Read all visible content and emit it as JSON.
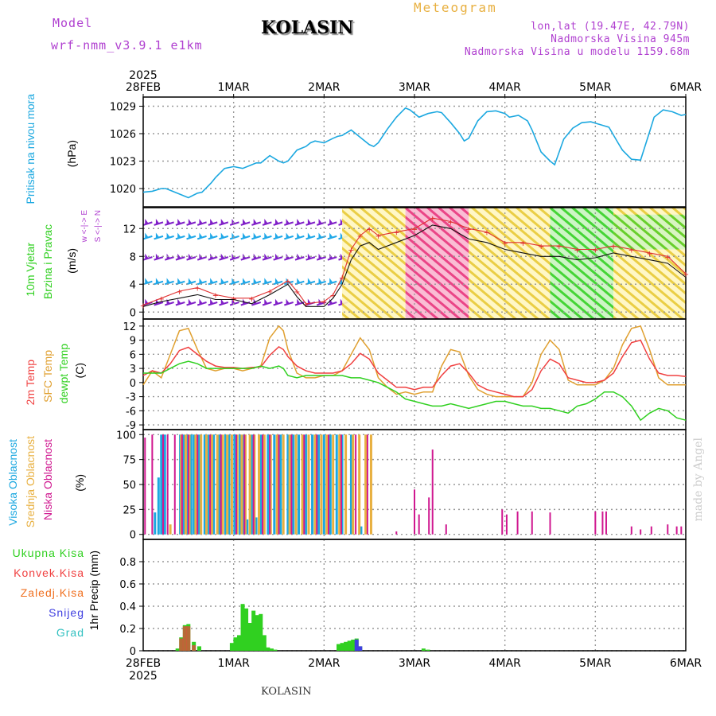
{
  "header": {
    "model_label": "Model",
    "model_run": "wrf-nmm_v3.9.1 e1km",
    "title": "KOLASIN",
    "meteogram": "Meteogram",
    "lonlat": "lon,lat (19.47E, 42.79N)",
    "altitude": "Nadmorska Visina 945m",
    "model_altitude": "Nadmorska Visina u modelu 1159.68m"
  },
  "footer": {
    "station": "KOLASIN",
    "credit": "made by Angel"
  },
  "time_axis": {
    "year": "2025",
    "labels": [
      "28FEB",
      "1MAR",
      "2MAR",
      "3MAR",
      "4MAR",
      "5MAR",
      "6MAR"
    ]
  },
  "colors": {
    "pressure": "#1ca8e0",
    "t2m": "#f04040",
    "sfc": "#e0a030",
    "dewpt": "#30d020",
    "high_cloud": "#1ca8e0",
    "mid_cloud": "#e8b040",
    "low_cloud": "#d01890",
    "total_precip": "#30d020",
    "conv_precip": "#f04040",
    "frz_precip": "#f07020",
    "snow": "#4040e0",
    "hail": "#30c0c0"
  },
  "panels": {
    "pressure": {
      "label": "Pritisak na nivou mora",
      "unit": "(hPa)"
    },
    "wind": {
      "label1": "10m Vjetar",
      "label2": "Brzina i Pravac",
      "unit": "(m/s)",
      "compass": "w <-|-> E",
      "compass2": "S <-|-> N"
    },
    "temp": {
      "label_t2m": "2m Temp",
      "label_sfc": "SFC Temp",
      "label_dew": "dewpt Temp",
      "unit": "(C)"
    },
    "cloud": {
      "label_high": "Visoka Oblacnost",
      "label_mid": "Srednja Oblacnost",
      "label_low": "Niska Oblacnost",
      "unit": "(%)"
    },
    "precip": {
      "legend": [
        "Ukupna Kisa",
        "Konvek.Kisa",
        "Zaledj.Kisa",
        "Snijeg",
        "Grad"
      ],
      "unit": "1hr Precip (mm)"
    }
  },
  "chart_data": [
    {
      "type": "line",
      "name": "pressure",
      "ylabel": "(hPa)",
      "ylim": [
        1018,
        1030
      ],
      "yticks": [
        1020,
        1023,
        1026,
        1029
      ],
      "x_days": [
        0,
        0.1,
        0.2,
        0.25,
        0.3,
        0.4,
        0.5,
        0.6,
        0.65,
        0.75,
        0.8,
        0.9,
        1.0,
        1.1,
        1.2,
        1.25,
        1.3,
        1.4,
        1.5,
        1.55,
        1.6,
        1.7,
        1.8,
        1.85,
        1.9,
        2.0,
        2.1,
        2.15,
        2.2,
        2.3,
        2.4,
        2.5,
        2.55,
        2.6,
        2.7,
        2.8,
        2.9,
        2.95,
        3.05,
        3.15,
        3.25,
        3.3,
        3.4,
        3.5,
        3.55,
        3.6,
        3.7,
        3.8,
        3.9,
        4.0,
        4.05,
        4.15,
        4.25,
        4.3,
        4.4,
        4.5,
        4.55,
        4.65,
        4.75,
        4.85,
        4.95,
        5.05,
        5.15,
        5.25,
        5.3,
        5.4,
        5.5,
        5.6,
        5.65,
        5.75,
        5.85,
        5.95,
        6.0
      ],
      "values": [
        1019.6,
        1019.7,
        1020.0,
        1020.0,
        1019.8,
        1019.4,
        1019.0,
        1019.5,
        1019.6,
        1020.6,
        1021.2,
        1022.2,
        1022.4,
        1022.2,
        1022.6,
        1022.8,
        1022.8,
        1023.6,
        1023.0,
        1022.8,
        1023.0,
        1024.2,
        1024.6,
        1025.0,
        1025.2,
        1025.0,
        1025.5,
        1025.7,
        1025.8,
        1026.4,
        1025.6,
        1024.8,
        1024.6,
        1025.0,
        1026.5,
        1027.8,
        1028.8,
        1028.6,
        1027.8,
        1028.2,
        1028.4,
        1028.3,
        1027.2,
        1026.0,
        1025.2,
        1025.5,
        1027.4,
        1028.4,
        1028.5,
        1028.2,
        1027.8,
        1028.0,
        1027.4,
        1026.4,
        1024.0,
        1023.0,
        1022.6,
        1025.4,
        1026.6,
        1027.2,
        1027.3,
        1027.0,
        1026.7,
        1025.0,
        1024.2,
        1023.2,
        1023.1,
        1026.2,
        1027.8,
        1028.6,
        1028.4,
        1028.0,
        1028.1
      ]
    },
    {
      "type": "line",
      "name": "wind",
      "ylabel": "(m/s)",
      "ylim": [
        -1,
        15
      ],
      "yticks": [
        0,
        4,
        8,
        12
      ],
      "x_days": [
        0,
        0.2,
        0.4,
        0.6,
        0.8,
        1.0,
        1.2,
        1.4,
        1.6,
        1.7,
        1.8,
        2.0,
        2.1,
        2.2,
        2.3,
        2.4,
        2.5,
        2.6,
        2.8,
        3.0,
        3.2,
        3.4,
        3.6,
        3.8,
        4.0,
        4.2,
        4.4,
        4.6,
        4.8,
        5.0,
        5.2,
        5.4,
        5.6,
        5.8,
        6.0
      ],
      "speed": [
        0.8,
        1.5,
        2.0,
        2.5,
        1.8,
        1.8,
        1.2,
        2.5,
        4.0,
        2.2,
        0.8,
        0.8,
        2.0,
        4.0,
        7.5,
        9.5,
        10.0,
        9.0,
        10.0,
        11.0,
        12.5,
        12.0,
        10.5,
        10.0,
        9.0,
        8.5,
        8.0,
        8.0,
        7.5,
        7.8,
        8.5,
        8.0,
        7.5,
        7.0,
        5.0
      ],
      "gusts": [
        1.0,
        2.0,
        3.0,
        3.5,
        2.5,
        2.0,
        2.0,
        3.0,
        4.5,
        3.0,
        1.2,
        1.5,
        2.5,
        5.0,
        9.0,
        11.0,
        12.0,
        11.0,
        11.5,
        12.0,
        13.5,
        13.0,
        12.0,
        11.5,
        10.0,
        10.0,
        9.5,
        9.5,
        9.0,
        9.0,
        9.5,
        9.0,
        8.5,
        8.0,
        5.5
      ]
    },
    {
      "type": "line",
      "name": "temperature",
      "ylabel": "(C)",
      "ylim": [
        -10,
        13.5
      ],
      "yticks": [
        -9,
        -6,
        -3,
        0,
        3,
        6,
        9,
        12
      ],
      "x_days": [
        0,
        0.1,
        0.2,
        0.3,
        0.4,
        0.5,
        0.6,
        0.7,
        0.8,
        0.9,
        1.0,
        1.1,
        1.2,
        1.3,
        1.4,
        1.5,
        1.55,
        1.6,
        1.7,
        1.8,
        1.9,
        2.0,
        2.1,
        2.2,
        2.3,
        2.4,
        2.5,
        2.6,
        2.7,
        2.8,
        2.9,
        3.0,
        3.1,
        3.2,
        3.3,
        3.4,
        3.5,
        3.6,
        3.7,
        3.8,
        3.9,
        4.0,
        4.1,
        4.2,
        4.3,
        4.4,
        4.5,
        4.6,
        4.7,
        4.8,
        4.9,
        5.0,
        5.1,
        5.2,
        5.3,
        5.4,
        5.5,
        5.6,
        5.7,
        5.8,
        5.9,
        6.0
      ],
      "series": [
        {
          "name": "2m Temp",
          "values": [
            1.5,
            2.5,
            2.0,
            4.0,
            6.8,
            7.5,
            6.0,
            4.5,
            3.5,
            3.2,
            3.2,
            3.0,
            3.2,
            3.3,
            5.8,
            7.6,
            7.0,
            5.5,
            3.5,
            2.5,
            2.0,
            2.0,
            2.0,
            2.5,
            4.0,
            6.2,
            5.0,
            2.0,
            0.5,
            -1.0,
            -1.0,
            -1.5,
            -1.0,
            -1.0,
            1.5,
            3.5,
            4.0,
            2.0,
            -0.5,
            -1.5,
            -2.0,
            -2.5,
            -3.0,
            -3.0,
            -1.5,
            2.5,
            5.0,
            4.0,
            1.0,
            0.5,
            0.0,
            0.0,
            0.5,
            2.0,
            5.5,
            8.5,
            9.0,
            5.0,
            2.0,
            1.5,
            1.5,
            1.3
          ]
        },
        {
          "name": "SFC Temp",
          "values": [
            -0.5,
            2.5,
            1.0,
            6.0,
            11.0,
            11.5,
            7.0,
            3.0,
            2.5,
            3.0,
            3.0,
            2.5,
            3.0,
            3.5,
            9.5,
            12.0,
            11.0,
            7.0,
            2.0,
            1.0,
            1.0,
            1.5,
            1.5,
            2.5,
            6.0,
            9.5,
            7.0,
            1.0,
            -1.0,
            -2.5,
            -2.0,
            -2.5,
            -2.0,
            -2.0,
            3.5,
            7.0,
            6.5,
            1.5,
            -1.5,
            -2.5,
            -3.0,
            -3.0,
            -3.0,
            -3.0,
            0.0,
            6.0,
            9.0,
            7.0,
            0.5,
            -0.5,
            -0.5,
            -0.5,
            0.5,
            3.0,
            8.0,
            11.5,
            12.0,
            7.0,
            1.0,
            -0.5,
            -0.5,
            -0.5
          ]
        },
        {
          "name": "dewpt Temp",
          "values": [
            2.0,
            2.0,
            2.0,
            3.0,
            4.0,
            4.5,
            4.0,
            3.0,
            3.0,
            3.0,
            3.0,
            3.0,
            3.0,
            3.5,
            3.0,
            3.5,
            3.0,
            1.5,
            1.0,
            1.5,
            1.5,
            1.5,
            1.5,
            1.5,
            1.0,
            1.0,
            0.5,
            0.0,
            -1.0,
            -2.0,
            -3.5,
            -4.0,
            -4.5,
            -5.0,
            -5.0,
            -4.5,
            -5.0,
            -5.5,
            -5.0,
            -4.5,
            -4.0,
            -4.0,
            -4.5,
            -5.0,
            -5.0,
            -5.5,
            -5.5,
            -6.0,
            -6.5,
            -5.0,
            -4.5,
            -3.5,
            -2.0,
            -2.0,
            -3.0,
            -5.0,
            -8.0,
            -6.5,
            -5.5,
            -6.0,
            -7.5,
            -8.0
          ]
        }
      ]
    },
    {
      "type": "bar",
      "name": "cloud_cover",
      "ylabel": "(%)",
      "ylim": [
        -5,
        105
      ],
      "yticks": [
        0,
        25,
        50,
        75,
        100
      ],
      "series": [
        {
          "name": "Visoka Oblacnost",
          "x_days": [
            0.13,
            0.17,
            0.2,
            0.24,
            0.41,
            0.45,
            0.49,
            0.53,
            0.56,
            0.62,
            0.68,
            0.72,
            0.78,
            0.84,
            0.91,
            0.95,
            1.01,
            1.07,
            1.11,
            1.15,
            1.2,
            1.25,
            1.3,
            1.38,
            1.45,
            1.52,
            1.6,
            1.66,
            1.72,
            1.8,
            1.87,
            1.94,
            2.0,
            2.07,
            2.14,
            2.2,
            2.3,
            2.41
          ],
          "values": [
            22,
            57,
            100,
            100,
            100,
            100,
            100,
            100,
            100,
            100,
            100,
            100,
            100,
            100,
            100,
            100,
            100,
            100,
            100,
            15,
            100,
            17,
            100,
            100,
            100,
            100,
            100,
            100,
            100,
            100,
            100,
            100,
            100,
            100,
            100,
            100,
            100,
            8
          ]
        },
        {
          "name": "Srednja Oblacnost",
          "x_days": [
            0.3,
            0.42,
            0.47,
            0.51,
            0.58,
            0.64,
            0.7,
            0.76,
            0.82,
            0.88,
            0.93,
            0.98,
            1.04,
            1.09,
            1.13,
            1.18,
            1.23,
            1.28,
            1.34,
            1.41,
            1.48,
            1.55,
            1.62,
            1.69,
            1.76,
            1.83,
            1.9,
            1.97,
            2.03,
            2.1,
            2.17,
            2.24,
            2.32,
            2.39,
            2.46,
            2.52
          ],
          "values": [
            10,
            100,
            100,
            100,
            100,
            100,
            100,
            100,
            100,
            100,
            100,
            100,
            100,
            100,
            100,
            100,
            100,
            100,
            100,
            100,
            100,
            100,
            100,
            100,
            100,
            100,
            100,
            100,
            100,
            100,
            100,
            100,
            100,
            100,
            100,
            100
          ]
        },
        {
          "name": "Niska Oblacnost",
          "x_days": [
            0.02,
            0.1,
            0.22,
            0.27,
            0.35,
            0.43,
            0.5,
            0.6,
            0.74,
            0.86,
            1.03,
            1.12,
            1.22,
            1.32,
            1.4,
            1.5,
            1.64,
            1.78,
            1.92,
            2.05,
            2.19,
            2.35,
            2.48,
            2.8,
            3.0,
            3.05,
            3.16,
            3.2,
            3.35,
            3.97,
            4.02,
            4.14,
            4.3,
            4.5,
            5.0,
            5.08,
            5.12,
            5.4,
            5.5,
            5.62,
            5.8,
            5.9,
            5.95
          ],
          "values": [
            97,
            100,
            100,
            100,
            100,
            100,
            100,
            100,
            100,
            100,
            100,
            100,
            100,
            100,
            100,
            100,
            100,
            100,
            100,
            100,
            100,
            100,
            100,
            3,
            45,
            20,
            37,
            85,
            10,
            25,
            20,
            23,
            23,
            22,
            23,
            23,
            23,
            8,
            5,
            8,
            10,
            8,
            8
          ]
        }
      ]
    },
    {
      "type": "bar",
      "name": "precipitation",
      "ylabel": "1hr Precip (mm)",
      "ylim": [
        0,
        1.0
      ],
      "yticks": [
        0,
        0.2,
        0.4,
        0.6,
        0.8
      ],
      "series": [
        {
          "name": "Ukupna Kisa",
          "x_days": [
            0.38,
            0.42,
            0.46,
            0.5,
            0.56,
            0.62,
            0.98,
            1.02,
            1.06,
            1.1,
            1.14,
            1.18,
            1.22,
            1.26,
            1.3,
            1.34,
            1.38,
            1.42,
            1.46,
            2.16,
            2.2,
            2.24,
            2.28,
            2.32,
            2.36,
            2.4,
            3.1,
            3.15
          ],
          "values": [
            0.02,
            0.12,
            0.23,
            0.24,
            0.08,
            0.04,
            0.07,
            0.12,
            0.14,
            0.42,
            0.38,
            0.25,
            0.36,
            0.32,
            0.33,
            0.14,
            0.03,
            0.02,
            0.01,
            0.06,
            0.07,
            0.08,
            0.09,
            0.1,
            0.11,
            0.04,
            0.02,
            0.01
          ]
        },
        {
          "name": "Konvek.Kisa",
          "x_days": [
            0.42,
            0.46,
            0.5,
            0.56
          ],
          "values": [
            0.11,
            0.22,
            0.22,
            0.05
          ]
        },
        {
          "name": "Snijeg",
          "x_days": [
            2.36,
            2.4
          ],
          "values": [
            0.1,
            0.04
          ]
        }
      ]
    }
  ]
}
